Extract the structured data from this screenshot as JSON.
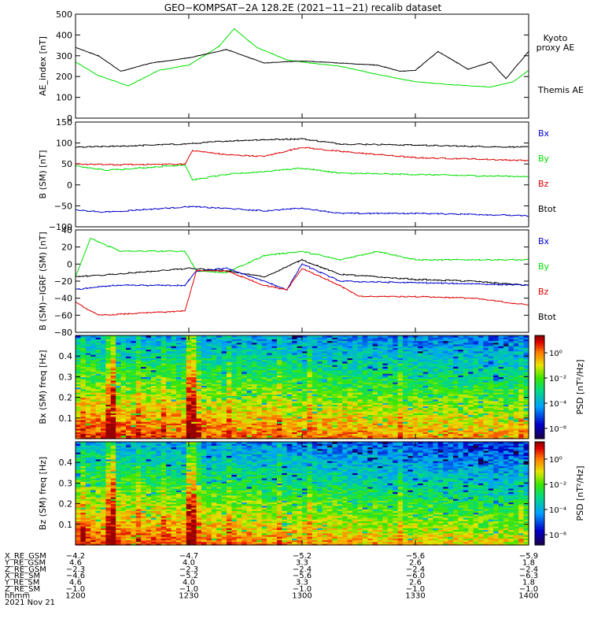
{
  "title": "GEO−KOMPSAT−2A 128.2E (2021−11−21) recalib dataset",
  "x_ticks": [
    1200,
    1230,
    1300,
    1330,
    1400
  ],
  "ephemeris": {
    "labels": [
      "X_RE_GSM",
      "Y_RE_GSM",
      "Z_RE_GSM",
      "X_RE_SM",
      "Y_RE_SM",
      "Z_RE_SM",
      "hhmm",
      "2021 Nov 21"
    ],
    "rows": [
      [
        "−4.2",
        "−4.7",
        "−5.2",
        "−5.6",
        "−5.9"
      ],
      [
        "4.6",
        "4.0",
        "3.3",
        "2.6",
        "1.8"
      ],
      [
        "−2.3",
        "−2.3",
        "−2.4",
        "−2.4",
        "−2.4"
      ],
      [
        "−4.6",
        "−5.2",
        "−5.6",
        "−6.0",
        "−6.3"
      ],
      [
        "4.6",
        "4.0",
        "3.3",
        "2.6",
        "1.8"
      ],
      [
        "−1.0",
        "−1.0",
        "−1.0",
        "−1.0",
        "−1.0"
      ],
      [
        "1200",
        "1230",
        "1300",
        "1330",
        "1400"
      ]
    ]
  },
  "colors": {
    "black": "#000000",
    "green": "#00e000",
    "red": "#dd0000",
    "blue": "#0000cc"
  },
  "chart_data": [
    {
      "type": "line",
      "ylabel": "AE_index [nT]",
      "ylim": [
        0,
        500
      ],
      "yticks": [
        0,
        100,
        200,
        300,
        400,
        500
      ],
      "legend": [
        {
          "name": "Kyoto proxy AE",
          "color": "green"
        },
        {
          "name": "Themis AE",
          "color": "black"
        }
      ],
      "series": [
        {
          "name": "Kyoto proxy AE",
          "color": "green",
          "x": [
            1200,
            1206,
            1214,
            1222,
            1230,
            1238,
            1242,
            1248,
            1256,
            1300,
            1310,
            1320,
            1330,
            1340,
            1350,
            1356,
            1400
          ],
          "values": [
            270,
            205,
            155,
            230,
            255,
            345,
            430,
            340,
            280,
            270,
            250,
            210,
            175,
            160,
            150,
            175,
            230
          ]
        },
        {
          "name": "Themis AE",
          "color": "black",
          "x": [
            1200,
            1206,
            1212,
            1220,
            1230,
            1240,
            1250,
            1300,
            1310,
            1320,
            1326,
            1330,
            1336,
            1344,
            1350,
            1354,
            1400
          ],
          "values": [
            340,
            300,
            225,
            265,
            290,
            330,
            265,
            275,
            265,
            255,
            225,
            230,
            320,
            235,
            270,
            190,
            320
          ]
        }
      ]
    },
    {
      "type": "line",
      "ylabel": "B (SM) [nT]",
      "ylim": [
        -100,
        150
      ],
      "yticks": [
        -100,
        -50,
        0,
        50,
        100,
        150
      ],
      "legend": [
        {
          "name": "Bx",
          "color": "blue"
        },
        {
          "name": "By",
          "color": "green"
        },
        {
          "name": "Bz",
          "color": "red"
        },
        {
          "name": "Btot",
          "color": "black"
        }
      ],
      "series": [
        {
          "name": "Btot",
          "color": "black",
          "x": [
            1200,
            1210,
            1230,
            1240,
            1250,
            1300,
            1310,
            1330,
            1345,
            1400
          ],
          "values": [
            90,
            92,
            98,
            105,
            108,
            110,
            98,
            95,
            92,
            90
          ]
        },
        {
          "name": "Bz",
          "color": "red",
          "x": [
            1200,
            1210,
            1229,
            1231,
            1240,
            1250,
            1300,
            1310,
            1330,
            1345,
            1400
          ],
          "values": [
            50,
            48,
            50,
            82,
            72,
            68,
            90,
            80,
            65,
            62,
            58
          ]
        },
        {
          "name": "By",
          "color": "green",
          "x": [
            1200,
            1208,
            1229,
            1231,
            1240,
            1250,
            1300,
            1310,
            1330,
            1345,
            1400
          ],
          "values": [
            45,
            35,
            48,
            12,
            25,
            32,
            40,
            28,
            25,
            22,
            20
          ]
        },
        {
          "name": "Bx",
          "color": "blue",
          "x": [
            1200,
            1208,
            1230,
            1240,
            1250,
            1300,
            1310,
            1330,
            1345,
            1400
          ],
          "values": [
            -60,
            -65,
            -52,
            -56,
            -62,
            -55,
            -68,
            -68,
            -70,
            -74
          ]
        }
      ]
    },
    {
      "type": "line",
      "ylabel": "B (SM)−IGRF (SM) [nT]",
      "ylim": [
        -80,
        40
      ],
      "yticks": [
        -80,
        -60,
        -40,
        -20,
        0,
        20,
        40
      ],
      "legend": [
        {
          "name": "Bx",
          "color": "blue"
        },
        {
          "name": "By",
          "color": "green"
        },
        {
          "name": "Bz",
          "color": "red"
        },
        {
          "name": "Btot",
          "color": "black"
        }
      ],
      "series": [
        {
          "name": "By",
          "color": "green",
          "x": [
            1200,
            1204,
            1212,
            1229,
            1232,
            1240,
            1250,
            1300,
            1310,
            1320,
            1330,
            1345,
            1400
          ],
          "values": [
            -15,
            30,
            15,
            15,
            -8,
            -10,
            10,
            15,
            5,
            15,
            5,
            5,
            5
          ]
        },
        {
          "name": "Btot",
          "color": "black",
          "x": [
            1200,
            1210,
            1230,
            1240,
            1250,
            1300,
            1310,
            1330,
            1345,
            1400
          ],
          "values": [
            -15,
            -12,
            -5,
            -8,
            -15,
            5,
            -12,
            -18,
            -20,
            -25
          ]
        },
        {
          "name": "Bx",
          "color": "blue",
          "x": [
            1200,
            1210,
            1229,
            1232,
            1240,
            1250,
            1256,
            1300,
            1310,
            1330,
            1345,
            1400
          ],
          "values": [
            -30,
            -25,
            -25,
            -8,
            -5,
            -20,
            -30,
            0,
            -20,
            -22,
            -23,
            -25
          ]
        },
        {
          "name": "Bz",
          "color": "red",
          "x": [
            1200,
            1206,
            1229,
            1232,
            1240,
            1250,
            1256,
            1300,
            1310,
            1315,
            1330,
            1345,
            1400
          ],
          "values": [
            -45,
            -60,
            -55,
            -8,
            -8,
            -25,
            -30,
            -5,
            -25,
            -38,
            -38,
            -40,
            -48
          ]
        }
      ]
    },
    {
      "type": "heatmap",
      "ylabel": "Bx (SM) freq [Hz]",
      "ylim": [
        0,
        0.5
      ],
      "yticks": [
        0.1,
        0.2,
        0.3,
        0.4
      ],
      "colorbar": {
        "label": "PSD [nT²/Hz]",
        "ticks": [
          1,
          0.01,
          0.0001,
          1e-06
        ],
        "tick_labels": [
          "10⁰",
          "10⁻²",
          "10⁻⁴",
          "10⁻⁶"
        ]
      }
    },
    {
      "type": "heatmap",
      "ylabel": "Bz (SM) freq [Hz]",
      "ylim": [
        0,
        0.5
      ],
      "yticks": [
        0.1,
        0.2,
        0.3,
        0.4
      ],
      "colorbar": {
        "label": "PSD [nT²/Hz]",
        "ticks": [
          1,
          0.01,
          0.0001,
          1e-06
        ],
        "tick_labels": [
          "10⁰",
          "10⁻²",
          "10⁻⁴",
          "10⁻⁶"
        ]
      }
    }
  ]
}
